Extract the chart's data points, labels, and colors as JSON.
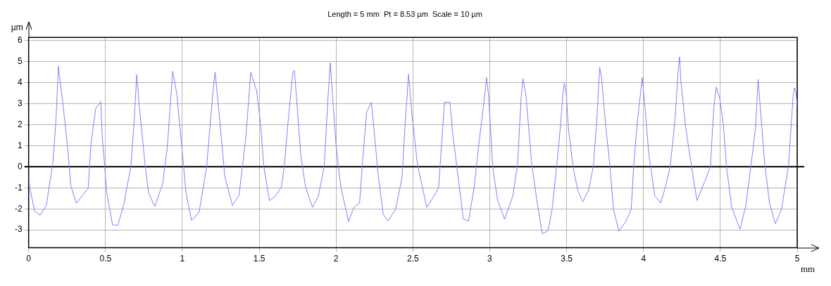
{
  "chart_data": {
    "type": "line",
    "title": "Length = 5 mm  Pt = 8.53 µm  Scale = 10 µm",
    "xlabel": "mm",
    "ylabel": "µm",
    "x": [
      0,
      0.008,
      0.038,
      0.075,
      0.115,
      0.157,
      0.176,
      0.194,
      0.206,
      0.222,
      0.252,
      0.275,
      0.31,
      0.387,
      0.405,
      0.436,
      0.469,
      0.479,
      0.508,
      0.546,
      0.581,
      0.619,
      0.665,
      0.688,
      0.703,
      0.719,
      0.757,
      0.78,
      0.821,
      0.872,
      0.902,
      0.937,
      0.963,
      0.994,
      1.024,
      1.06,
      1.109,
      1.157,
      1.2,
      1.213,
      1.239,
      1.277,
      1.326,
      1.369,
      1.414,
      1.445,
      1.483,
      1.509,
      1.53,
      1.567,
      1.609,
      1.644,
      1.663,
      1.686,
      1.719,
      1.729,
      1.747,
      1.77,
      1.801,
      1.847,
      1.885,
      1.923,
      1.946,
      1.962,
      1.977,
      2.0,
      2.031,
      2.081,
      2.115,
      2.153,
      2.176,
      2.199,
      2.23,
      2.245,
      2.276,
      2.307,
      2.337,
      2.387,
      2.429,
      2.452,
      2.472,
      2.491,
      2.529,
      2.59,
      2.637,
      2.667,
      2.69,
      2.706,
      2.741,
      2.759,
      2.798,
      2.828,
      2.862,
      2.897,
      2.928,
      2.959,
      2.979,
      2.992,
      3.02,
      3.051,
      3.097,
      3.15,
      3.181,
      3.204,
      3.216,
      3.235,
      3.273,
      3.311,
      3.342,
      3.38,
      3.405,
      3.435,
      3.458,
      3.478,
      3.486,
      3.497,
      3.512,
      3.543,
      3.574,
      3.605,
      3.643,
      3.674,
      3.697,
      3.715,
      3.728,
      3.755,
      3.782,
      3.805,
      3.84,
      3.882,
      3.92,
      3.935,
      3.958,
      3.992,
      4.008,
      4.035,
      4.074,
      4.112,
      4.143,
      4.174,
      4.205,
      4.228,
      4.235,
      4.243,
      4.274,
      4.312,
      4.348,
      4.397,
      4.435,
      4.458,
      4.474,
      4.497,
      4.52,
      4.54,
      4.574,
      4.628,
      4.666,
      4.697,
      4.728,
      4.746,
      4.758,
      4.789,
      4.82,
      4.858,
      4.897,
      4.943,
      4.974,
      4.982,
      4.992,
      5.0
    ],
    "series": [
      {
        "color": "#8080ff",
        "values": [
          -0.5,
          -1.0,
          -2.1,
          -2.3,
          -1.84,
          0.16,
          2.0,
          4.78,
          3.95,
          3.08,
          1.03,
          -0.92,
          -1.73,
          -1.03,
          1.03,
          2.76,
          3.1,
          1.46,
          -1.24,
          -2.76,
          -2.78,
          -1.78,
          0,
          2.32,
          4.38,
          2.92,
          0.16,
          -1.24,
          -1.89,
          -0.81,
          0.92,
          4.54,
          3.51,
          1.14,
          -1.24,
          -2.56,
          -2.16,
          -0.05,
          3.62,
          4.51,
          2.54,
          -0.49,
          -1.84,
          -1.35,
          1.46,
          4.5,
          3.62,
          2.05,
          0,
          -1.61,
          -1.37,
          -0.95,
          0,
          2.0,
          4.51,
          4.57,
          2.87,
          0.58,
          -0.95,
          -1.93,
          -1.39,
          0.03,
          3.09,
          4.95,
          3.42,
          1.02,
          -0.95,
          -2.61,
          -1.93,
          -1.72,
          0.58,
          2.6,
          3.07,
          1.89,
          -0.51,
          -2.26,
          -2.57,
          -2.04,
          -0.51,
          2.33,
          4.4,
          2.66,
          0.14,
          -1.93,
          -1.39,
          -1.0,
          1.45,
          3.07,
          3.07,
          1.56,
          -0.73,
          -2.48,
          -2.57,
          -1.06,
          1.02,
          2.87,
          4.24,
          3.42,
          -0.08,
          -1.61,
          -2.5,
          -1.39,
          0.14,
          3.31,
          4.19,
          3.42,
          0.14,
          -1.83,
          -3.19,
          -3.03,
          -2.04,
          0,
          1.78,
          3.64,
          3.97,
          3.53,
          1.78,
          -0.08,
          -1.17,
          -1.66,
          -1.11,
          0.03,
          2.33,
          4.73,
          4.19,
          1.89,
          0.03,
          -2.04,
          -3.06,
          -2.64,
          -2.04,
          -0.08,
          2.0,
          4.24,
          2.98,
          0.58,
          -1.39,
          -1.72,
          -0.95,
          0.03,
          2.22,
          4.79,
          5.22,
          4.08,
          1.89,
          0.03,
          -1.61,
          -0.73,
          0,
          2.87,
          3.8,
          3.2,
          2.0,
          0,
          -1.93,
          -2.97,
          -1.83,
          -0.08,
          1.78,
          4.16,
          2.98,
          0.14,
          -1.72,
          -2.7,
          -2.04,
          0,
          3.42,
          3.75,
          3.53,
          2.87
        ]
      }
    ],
    "xlim": [
      0,
      5
    ],
    "xticks": [
      0,
      0.5,
      1,
      1.5,
      2,
      2.5,
      3,
      3.5,
      4,
      4.5,
      5
    ],
    "ylim": [
      -3.85,
      6.15
    ],
    "yticks": [
      -3,
      -2,
      -1,
      0,
      1,
      2,
      3,
      4,
      5,
      6
    ],
    "ref_lines": [
      {
        "axis": "y",
        "value": 0,
        "color": "#000000"
      }
    ],
    "grid": true,
    "legend": false,
    "marker": "none",
    "line_style": "solid"
  }
}
